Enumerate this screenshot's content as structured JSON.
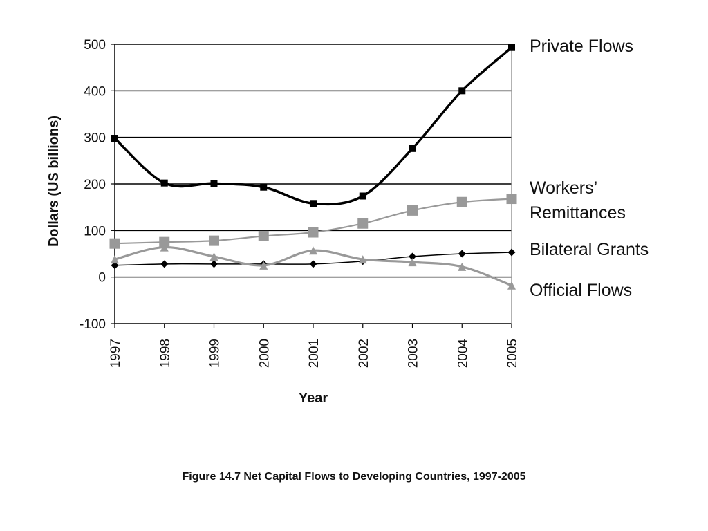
{
  "caption": "Figure 14.7 Net Capital Flows to Developing Countries, 1997-2005",
  "chart_data": {
    "type": "line",
    "title": "",
    "xlabel": "Year",
    "ylabel": "Dollars (US billions)",
    "x": [
      "1997",
      "1998",
      "1999",
      "2000",
      "2001",
      "2002",
      "2003",
      "2004",
      "2005"
    ],
    "ylim": [
      -100,
      500
    ],
    "yticks": [
      "500",
      "400",
      "300",
      "200",
      "100",
      "0",
      "-100"
    ],
    "grid": true,
    "series": [
      {
        "name": "Private Flows",
        "label_lines": [
          "Private Flows"
        ],
        "values": [
          298,
          202,
          201,
          193,
          158,
          174,
          276,
          400,
          493
        ],
        "color": "#000000",
        "marker": "square"
      },
      {
        "name": "Workers’ Remittances",
        "label_lines": [
          "Workers’",
          "Remittances"
        ],
        "values": [
          72,
          75,
          78,
          88,
          96,
          115,
          143,
          161,
          168
        ],
        "color": "#999999",
        "marker": "square"
      },
      {
        "name": "Bilateral Grants",
        "label_lines": [
          "Bilateral Grants"
        ],
        "values": [
          25,
          28,
          28,
          28,
          28,
          34,
          44,
          50,
          53
        ],
        "color": "#000000",
        "marker": "diamond"
      },
      {
        "name": "Official Flows",
        "label_lines": [
          "Official Flows"
        ],
        "values": [
          38,
          64,
          44,
          25,
          57,
          38,
          32,
          22,
          -18
        ],
        "color": "#999999",
        "marker": "triangle"
      }
    ]
  }
}
